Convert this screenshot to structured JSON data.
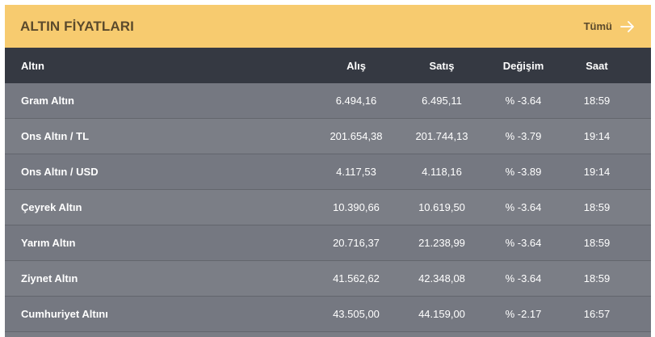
{
  "header": {
    "title": "ALTIN FİYATLARI",
    "all_label": "Tümü",
    "arrow_icon": "arrow-right-icon"
  },
  "columns": {
    "name": "Altın",
    "buy": "Alış",
    "sell": "Satış",
    "change": "Değişim",
    "time": "Saat"
  },
  "rows": [
    {
      "name": "Gram Altın",
      "buy": "6.494,16",
      "sell": "6.495,11",
      "change": "% -3.64",
      "time": "18:59"
    },
    {
      "name": "Ons Altın / TL",
      "buy": "201.654,38",
      "sell": "201.744,13",
      "change": "% -3.79",
      "time": "19:14"
    },
    {
      "name": "Ons Altın / USD",
      "buy": "4.117,53",
      "sell": "4.118,16",
      "change": "% -3.89",
      "time": "19:14"
    },
    {
      "name": "Çeyrek Altın",
      "buy": "10.390,66",
      "sell": "10.619,50",
      "change": "% -3.64",
      "time": "18:59"
    },
    {
      "name": "Yarım Altın",
      "buy": "20.716,37",
      "sell": "21.238,99",
      "change": "% -3.64",
      "time": "18:59"
    },
    {
      "name": "Ziynet Altın",
      "buy": "41.562,62",
      "sell": "42.348,08",
      "change": "% -3.64",
      "time": "18:59"
    },
    {
      "name": "Cumhuriyet Altını",
      "buy": "43.505,00",
      "sell": "44.159,00",
      "change": "% -2.17",
      "time": "16:57"
    }
  ]
}
